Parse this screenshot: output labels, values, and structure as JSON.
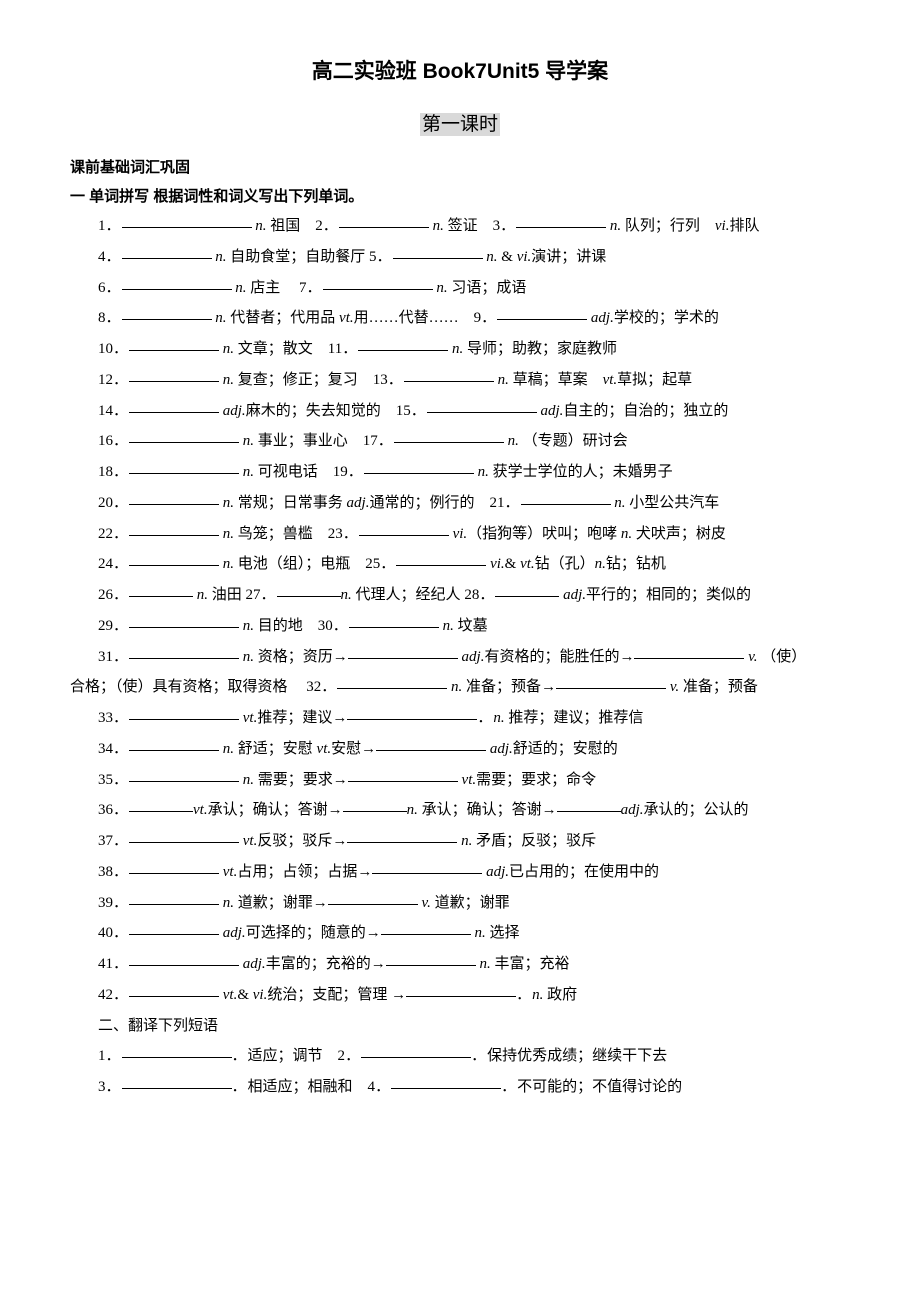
{
  "title": "高二实验班 Book7Unit5 导学案",
  "subtitle": "第一课时",
  "section_a": "课前基础词汇巩固",
  "section_b": "一 单词拼写 根据词性和词义写出下列单词。",
  "items": {
    "1": "祖国",
    "2": "签证",
    "3": "队列；行列",
    "3b": "排队",
    "4": "自助食堂；自助餐厅",
    "5": "演讲；讲课",
    "6": "店主",
    "7": "习语；成语",
    "8a": "代替者；代用品",
    "8b": "用……代替……",
    "9": "学校的；学术的",
    "10": "文章；散文",
    "11": "导师；助教；家庭教师",
    "12": "复查；修正；复习",
    "13a": "草稿；草案",
    "13b": "草拟；起草",
    "14": "麻木的；失去知觉的",
    "15": "自主的；自治的；独立的",
    "16": "事业；事业心",
    "17": "（专题）研讨会",
    "18": "可视电话",
    "19": "获学士学位的人；未婚男子",
    "20a": "常规；日常事务",
    "20b": "通常的；例行的",
    "21": "小型公共汽车",
    "22": "鸟笼；兽槛",
    "23a": "（指狗等）吠叫；咆哮",
    "23b": "犬吠声；树皮",
    "24": "电池（组）；电瓶",
    "25a": "钻（孔）",
    "25b": "钻；钻机",
    "26": "油田",
    "27": "代理人；经纪人",
    "28": "平行的；相同的；类似的",
    "29": "目的地",
    "30": "坟墓",
    "31a": "资格；资历",
    "31b": "有资格的；能胜任的",
    "31c": "（使）",
    "31d": "合格；（使）具有资格；取得资格",
    "32a": "准备；预备",
    "32b": "准备；预备",
    "33a": "推荐；建议",
    "33b": "推荐；建议；推荐信",
    "34a": "舒适；安慰",
    "34b": "安慰",
    "34c": "舒适的；安慰的",
    "35a": "需要；要求",
    "35b": "需要；要求；命令",
    "36a": "承认；确认；答谢",
    "36b": "承认；确认；答谢",
    "36c": "承认的；公认的",
    "37a": "反驳；驳斥",
    "37b": "矛盾；反驳；驳斥",
    "38a": "占用；占领；占据",
    "38b": "已占用的；在使用中的",
    "39a": "道歉；谢罪",
    "39b": "道歉；谢罪",
    "40a": "可选择的；随意的",
    "40b": "选择",
    "41a": "丰富的；充裕的",
    "41b": "丰富；充裕",
    "42a": "统治；支配；管理",
    "42b": "政府"
  },
  "section_c": "二、翻译下列短语",
  "phrases": {
    "1": "适应；调节",
    "2": "保持优秀成绩；继续干下去",
    "3": "相适应；相融和",
    "4": "不可能的；不值得讨论的"
  },
  "pos": {
    "n": "n.",
    "vi": "vi.",
    "vt": "vt.",
    "v": "v.",
    "adj": "adj.",
    "amp": "&"
  },
  "dots": "．",
  "arrow": "→"
}
